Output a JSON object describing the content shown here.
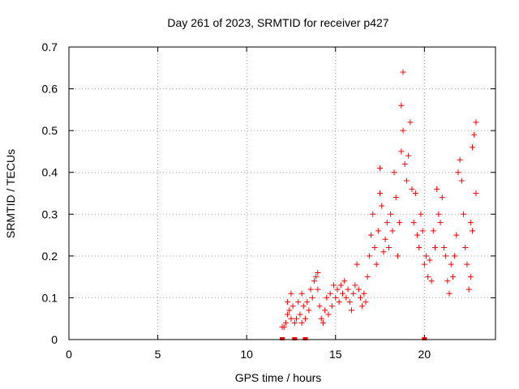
{
  "chart_data": {
    "type": "scatter",
    "title": "Day 261 of 2023, SRMTID for receiver p427",
    "xlabel": "GPS time / hours",
    "ylabel": "SRMTID / TECUs",
    "xlim": [
      0,
      24
    ],
    "ylim": [
      0,
      0.7
    ],
    "xticks": [
      0,
      5,
      10,
      15,
      20
    ],
    "yticks": [
      0,
      0.1,
      0.2,
      0.3,
      0.4,
      0.5,
      0.6,
      0.7
    ],
    "xtick_labels": [
      "0",
      "5",
      "10",
      "15",
      "20"
    ],
    "ytick_labels": [
      "0",
      "0.1",
      "0.2",
      "0.3",
      "0.4",
      "0.5",
      "0.6",
      "0.7"
    ],
    "grid": true,
    "marker": "+",
    "color": "#ff0000",
    "series": [
      {
        "name": "SRMTID",
        "points": [
          [
            12.0,
            0.03
          ],
          [
            12.1,
            0.03
          ],
          [
            12.2,
            0.04
          ],
          [
            12.3,
            0.06
          ],
          [
            12.3,
            0.09
          ],
          [
            12.4,
            0.07
          ],
          [
            12.5,
            0.05
          ],
          [
            12.5,
            0.11
          ],
          [
            12.6,
            0.08
          ],
          [
            12.7,
            0.04
          ],
          [
            12.8,
            0.05
          ],
          [
            12.9,
            0.09
          ],
          [
            13.0,
            0.06
          ],
          [
            13.1,
            0.04
          ],
          [
            13.1,
            0.11
          ],
          [
            13.2,
            0.08
          ],
          [
            13.3,
            0.05
          ],
          [
            13.4,
            0.09
          ],
          [
            13.5,
            0.07
          ],
          [
            13.6,
            0.12
          ],
          [
            13.7,
            0.1
          ],
          [
            13.8,
            0.14
          ],
          [
            13.9,
            0.15
          ],
          [
            14.0,
            0.12
          ],
          [
            14.0,
            0.16
          ],
          [
            14.1,
            0.08
          ],
          [
            14.2,
            0.05
          ],
          [
            14.3,
            0.04
          ],
          [
            14.4,
            0.07
          ],
          [
            14.5,
            0.1
          ],
          [
            14.6,
            0.06
          ],
          [
            14.7,
            0.11
          ],
          [
            14.8,
            0.08
          ],
          [
            14.9,
            0.13
          ],
          [
            15.0,
            0.1
          ],
          [
            15.1,
            0.12
          ],
          [
            15.2,
            0.09
          ],
          [
            15.3,
            0.13
          ],
          [
            15.4,
            0.11
          ],
          [
            15.5,
            0.14
          ],
          [
            15.6,
            0.1
          ],
          [
            15.7,
            0.12
          ],
          [
            15.8,
            0.09
          ],
          [
            15.9,
            0.07
          ],
          [
            16.0,
            0.11
          ],
          [
            16.1,
            0.13
          ],
          [
            16.2,
            0.18
          ],
          [
            16.3,
            0.12
          ],
          [
            16.4,
            0.1
          ],
          [
            16.5,
            0.08
          ],
          [
            16.6,
            0.11
          ],
          [
            16.7,
            0.09
          ],
          [
            16.8,
            0.15
          ],
          [
            16.9,
            0.2
          ],
          [
            17.0,
            0.25
          ],
          [
            17.1,
            0.3
          ],
          [
            17.2,
            0.22
          ],
          [
            17.3,
            0.18
          ],
          [
            17.4,
            0.26
          ],
          [
            17.5,
            0.35
          ],
          [
            17.5,
            0.41
          ],
          [
            17.6,
            0.32
          ],
          [
            17.7,
            0.21
          ],
          [
            17.8,
            0.24
          ],
          [
            17.9,
            0.28
          ],
          [
            18.0,
            0.22
          ],
          [
            18.1,
            0.3
          ],
          [
            18.2,
            0.26
          ],
          [
            18.3,
            0.4
          ],
          [
            18.4,
            0.34
          ],
          [
            18.5,
            0.2
          ],
          [
            18.6,
            0.28
          ],
          [
            18.7,
            0.45
          ],
          [
            18.7,
            0.56
          ],
          [
            18.8,
            0.64
          ],
          [
            18.8,
            0.5
          ],
          [
            18.9,
            0.42
          ],
          [
            19.0,
            0.38
          ],
          [
            19.1,
            0.44
          ],
          [
            19.2,
            0.52
          ],
          [
            19.3,
            0.36
          ],
          [
            19.4,
            0.28
          ],
          [
            19.5,
            0.35
          ],
          [
            19.6,
            0.25
          ],
          [
            19.7,
            0.22
          ],
          [
            19.8,
            0.3
          ],
          [
            19.9,
            0.26
          ],
          [
            20.0,
            0.18
          ],
          [
            20.1,
            0.2
          ],
          [
            20.2,
            0.15
          ],
          [
            20.3,
            0.19
          ],
          [
            20.4,
            0.14
          ],
          [
            20.5,
            0.26
          ],
          [
            20.6,
            0.22
          ],
          [
            20.7,
            0.36
          ],
          [
            20.8,
            0.3
          ],
          [
            20.9,
            0.28
          ],
          [
            21.0,
            0.34
          ],
          [
            21.1,
            0.22
          ],
          [
            21.2,
            0.2
          ],
          [
            21.3,
            0.14
          ],
          [
            21.4,
            0.11
          ],
          [
            21.5,
            0.18
          ],
          [
            21.6,
            0.15
          ],
          [
            21.7,
            0.2
          ],
          [
            21.8,
            0.25
          ],
          [
            21.9,
            0.4
          ],
          [
            22.0,
            0.43
          ],
          [
            22.1,
            0.38
          ],
          [
            22.2,
            0.3
          ],
          [
            22.3,
            0.22
          ],
          [
            22.4,
            0.18
          ],
          [
            22.5,
            0.12
          ],
          [
            22.6,
            0.15
          ],
          [
            22.7,
            0.26
          ],
          [
            22.7,
            0.46
          ],
          [
            22.8,
            0.49
          ],
          [
            22.9,
            0.52
          ],
          [
            22.9,
            0.35
          ],
          [
            22.6,
            0.28
          ]
        ],
        "zero_points": [
          12.0,
          12.7,
          13.3,
          20.0
        ]
      }
    ]
  }
}
